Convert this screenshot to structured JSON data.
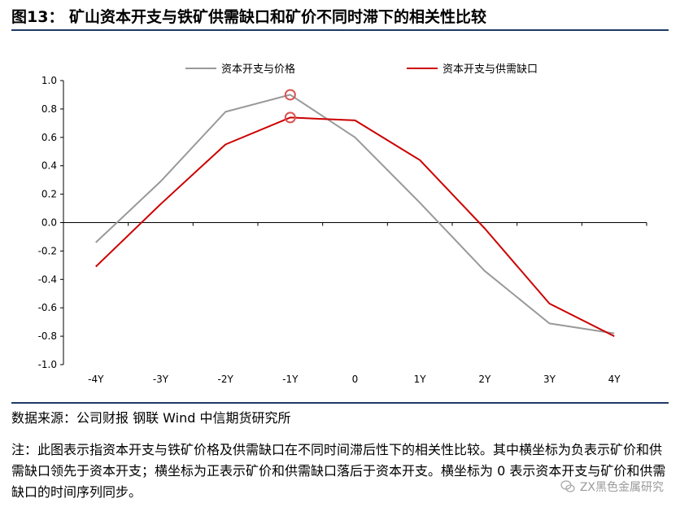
{
  "figure": {
    "title": "图13： 矿山资本开支与铁矿供需缺口和矿价不同时滞下的相关性比较",
    "source": "数据来源：公司财报 钢联 Wind 中信期货研究所",
    "note": "注：此图表示指资本开支与铁矿价格及供需缺口在不同时间滞后性下的相关性比较。其中横坐标为负表示矿价和供需缺口领先于资本开支；横坐标为正表示矿价和供需缺口落后于资本开支。横坐标为 0 表示资本开支与矿价和供需缺口的时间序列同步。",
    "watermark": "ZX黑色金属研究"
  },
  "chart_data": {
    "type": "line",
    "title": "",
    "xlabel": "",
    "ylabel": "",
    "categories": [
      "-4Y",
      "-3Y",
      "-2Y",
      "-1Y",
      "0",
      "1Y",
      "2Y",
      "3Y",
      "4Y"
    ],
    "ylim": [
      -1.0,
      1.0
    ],
    "yticks": [
      "1.0",
      "0.8",
      "0.6",
      "0.4",
      "0.2",
      "0.0",
      "-0.2",
      "-0.4",
      "-0.6",
      "-0.8",
      "-1.0"
    ],
    "grid": false,
    "legend_position": "top",
    "series": [
      {
        "name": "资本开支与价格",
        "color": "#999999",
        "values": [
          -0.14,
          0.29,
          0.78,
          0.9,
          0.6,
          0.14,
          -0.34,
          -0.71,
          -0.78
        ]
      },
      {
        "name": "资本开支与供需缺口",
        "color": "#cc0000",
        "values": [
          -0.31,
          0.13,
          0.55,
          0.74,
          0.72,
          0.44,
          -0.04,
          -0.57,
          -0.8
        ]
      }
    ],
    "highlight": [
      {
        "series": 0,
        "index": 3
      },
      {
        "series": 1,
        "index": 3
      }
    ]
  }
}
